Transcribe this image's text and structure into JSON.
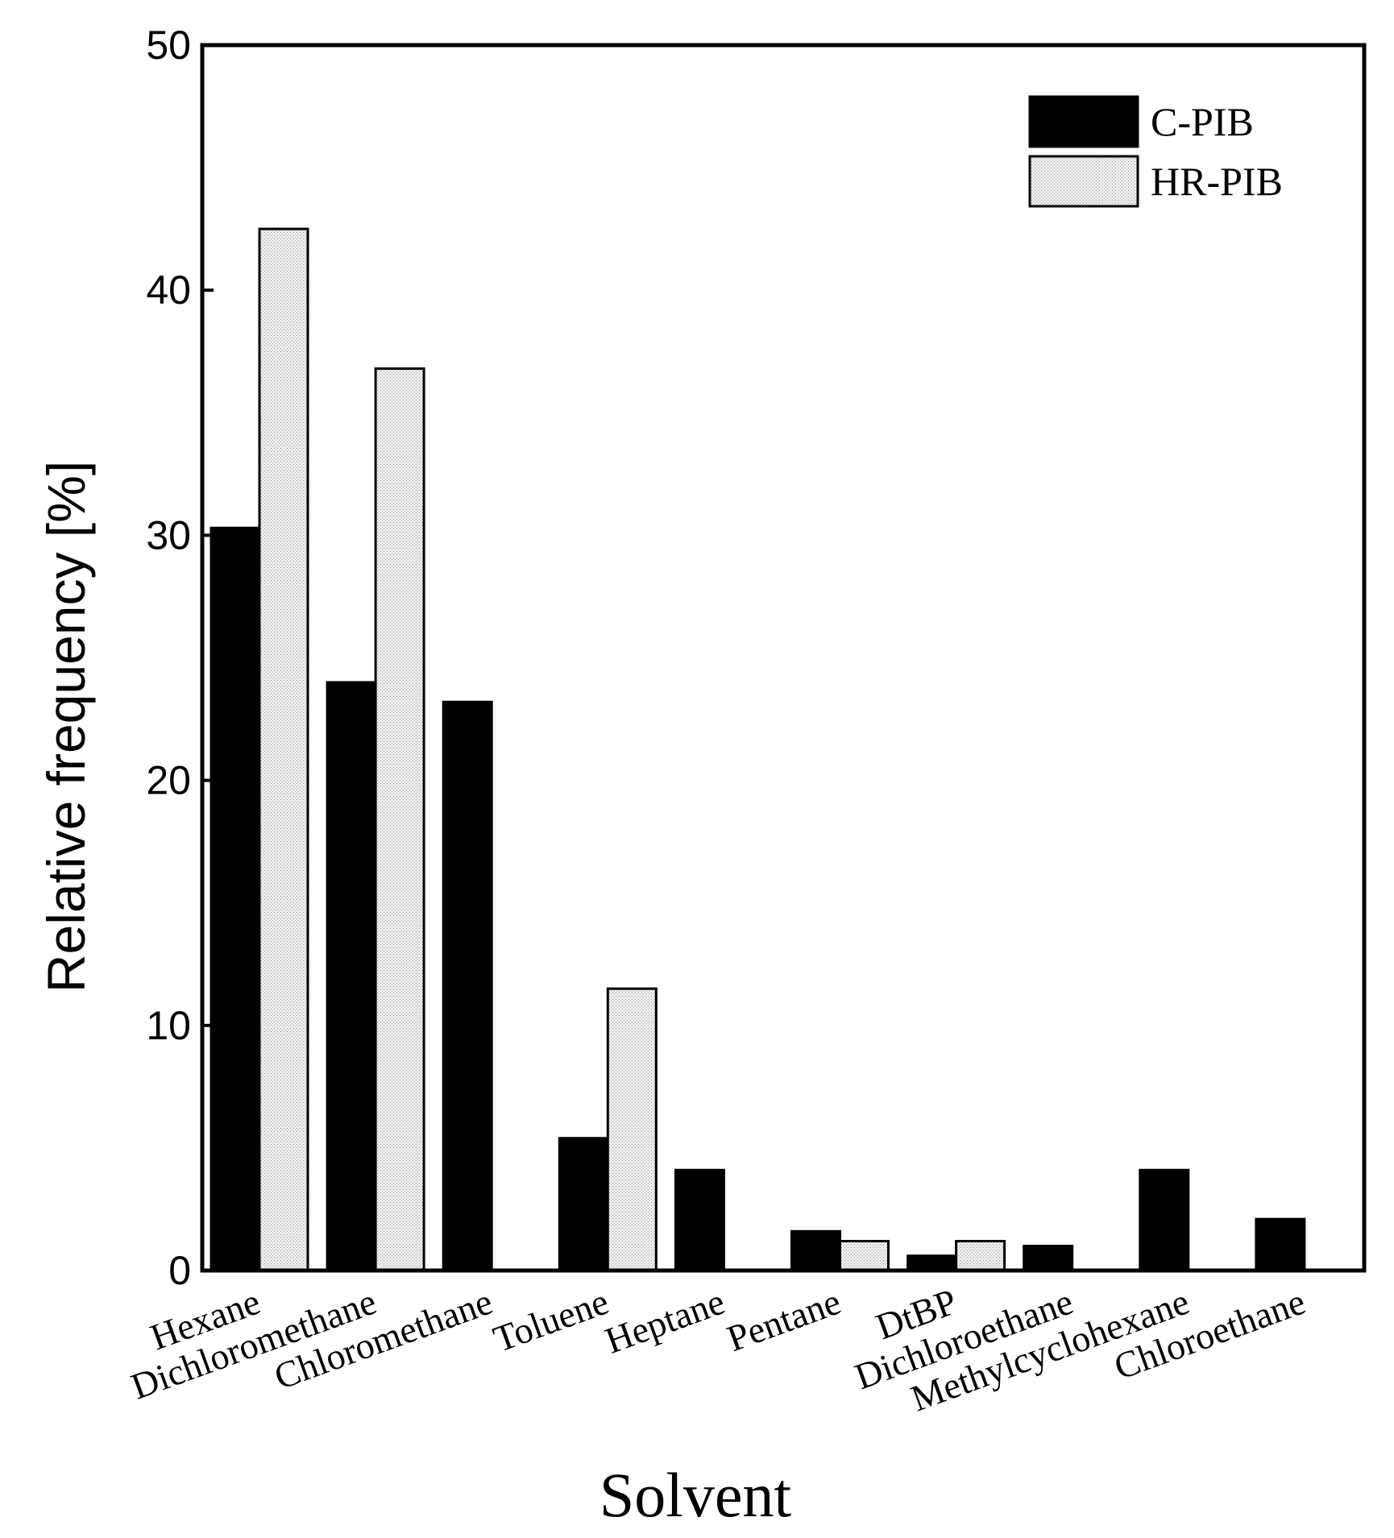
{
  "chart_data": {
    "type": "bar",
    "title": "",
    "xlabel": "Solvent",
    "ylabel": "Relative frequency [%]",
    "ylim": [
      0,
      50
    ],
    "yticks": [
      0,
      10,
      20,
      30,
      40,
      50
    ],
    "grid": false,
    "legend_position": "top-right",
    "categories": [
      "Hexane",
      "Dichloromethane",
      "Chloromethane",
      "Toluene",
      "Heptane",
      "Pentane",
      "DtBP",
      "Dichloroethane",
      "Methylcyclohexane",
      "Chloroethane"
    ],
    "series": [
      {
        "name": "C-PIB",
        "color": "#000000",
        "values": [
          30.3,
          24.0,
          23.2,
          5.4,
          4.1,
          1.6,
          0.6,
          1.0,
          4.1,
          2.1
        ]
      },
      {
        "name": "HR-PIB",
        "color": "#e6e6e6",
        "values": [
          42.5,
          36.8,
          0,
          11.5,
          0,
          1.2,
          1.2,
          0,
          0,
          0
        ]
      }
    ]
  }
}
